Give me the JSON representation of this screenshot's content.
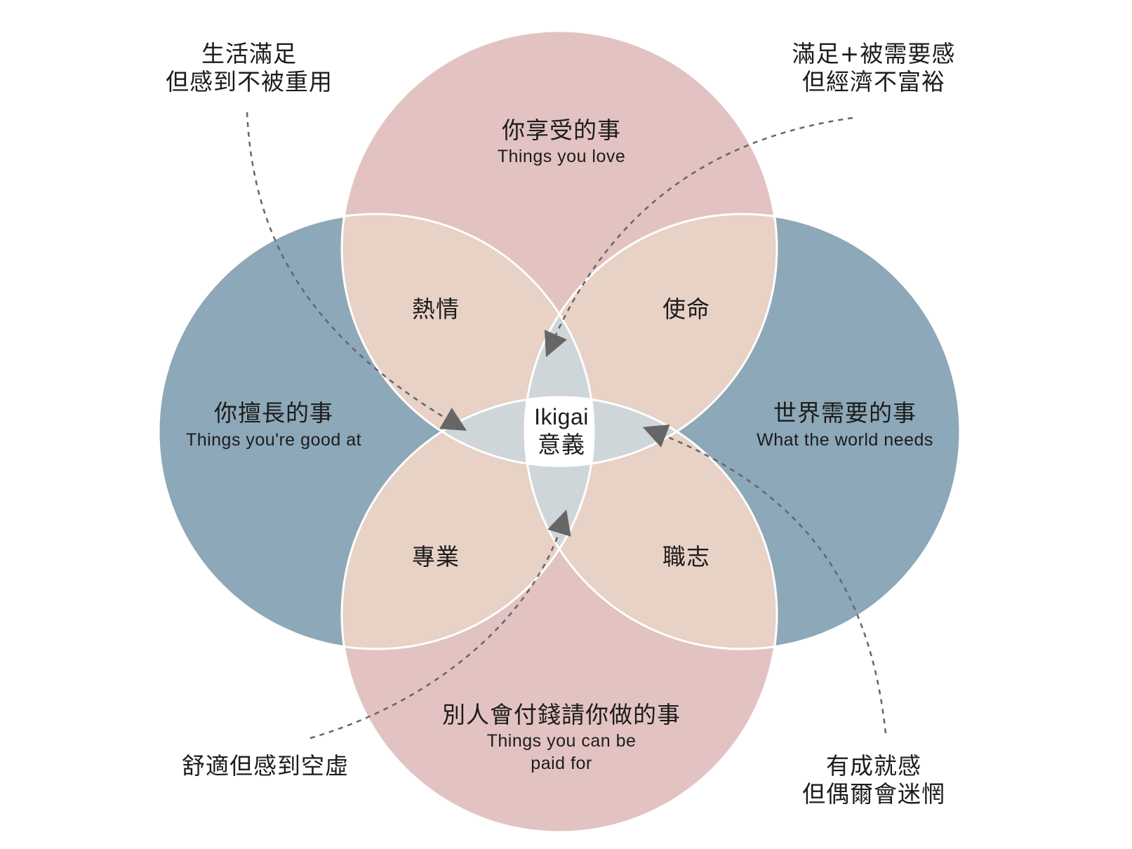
{
  "colors": {
    "love": "#e2c3c2",
    "good": "#8da8b8",
    "petal": "#e8d1c5",
    "core_lens": "#cfd6d9",
    "center": "#ffffff",
    "outline": "#ffffff",
    "dash": "#666666"
  },
  "circles": {
    "love": {
      "zh": "你享受的事",
      "en": "Things you love"
    },
    "good": {
      "zh": "你擅長的事",
      "en": "Things you're good at"
    },
    "world": {
      "zh": "世界需要的事",
      "en": "What the world needs"
    },
    "paid": {
      "zh": "別人會付錢請你做的事",
      "en_line1": "Things you can be",
      "en_line2": "paid for"
    }
  },
  "overlaps": {
    "passion": "熱情",
    "mission": "使命",
    "profession": "專業",
    "vocation": "職志"
  },
  "center": {
    "en": "Ikigai",
    "zh": "意義"
  },
  "callouts": {
    "top_left": {
      "line1": "生活滿足",
      "line2": "但感到不被重用"
    },
    "top_right": {
      "line1": "滿足+被需要感",
      "line2": "但經濟不富裕"
    },
    "bottom_left": {
      "line1": "舒適但感到空虛"
    },
    "bottom_right": {
      "line1": "有成就感",
      "line2": "但偶爾會迷惘"
    }
  }
}
